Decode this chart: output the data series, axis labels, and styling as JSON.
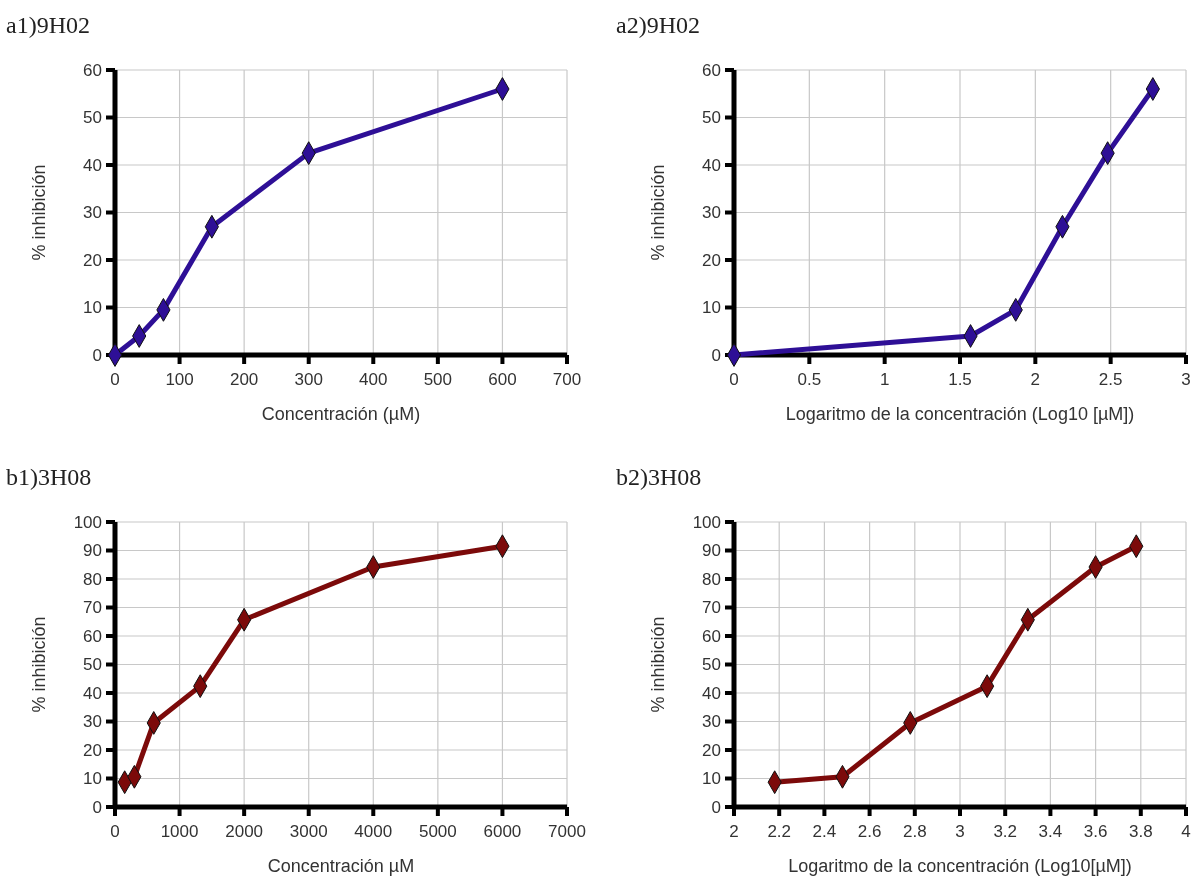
{
  "chart_data": [
    {
      "type": "line",
      "title": "a1)9H02",
      "xlabel": "Concentración (µM)",
      "ylabel": "% inhibición",
      "xlim": [
        0,
        700
      ],
      "xticks": [
        0,
        100,
        200,
        300,
        400,
        500,
        600,
        700
      ],
      "ylim": [
        0,
        60
      ],
      "yticks": [
        0,
        10,
        20,
        30,
        40,
        50,
        60
      ],
      "grid": true,
      "marker": "diamond",
      "series": [
        {
          "color": "#2e0f96",
          "x": [
            0,
            37.5,
            75,
            150,
            300,
            600
          ],
          "values": [
            0,
            4,
            9.5,
            27,
            42.5,
            56
          ]
        }
      ]
    },
    {
      "type": "line",
      "title": "a2)9H02",
      "xlabel": "Logaritmo de la concentración (Log10 [µM])",
      "ylabel": "% inhibición",
      "xlim": [
        0,
        3
      ],
      "xticks": [
        0,
        0.5,
        1,
        1.5,
        2,
        2.5,
        3
      ],
      "ylim": [
        0,
        60
      ],
      "yticks": [
        0,
        10,
        20,
        30,
        40,
        50,
        60
      ],
      "grid": true,
      "marker": "diamond",
      "series": [
        {
          "color": "#2e0f96",
          "x": [
            0,
            1.57,
            1.87,
            2.18,
            2.48,
            2.78
          ],
          "values": [
            0,
            4,
            9.5,
            27,
            42.5,
            56
          ]
        }
      ]
    },
    {
      "type": "line",
      "title": "b1)3H08",
      "xlabel": "Concentración µM",
      "ylabel": "% inhibición",
      "xlim": [
        0,
        7000
      ],
      "xticks": [
        0,
        1000,
        2000,
        3000,
        4000,
        5000,
        6000,
        7000
      ],
      "ylim": [
        0,
        100
      ],
      "yticks": [
        0,
        10,
        20,
        30,
        40,
        50,
        60,
        70,
        80,
        90,
        100
      ],
      "grid": true,
      "marker": "diamond",
      "series": [
        {
          "color": "#7c0a0a",
          "x": [
            150,
            300,
            600,
            1320,
            2000,
            4000,
            6000
          ],
          "values": [
            8.7,
            10.6,
            29.5,
            42.4,
            65.7,
            84.2,
            91.5
          ]
        }
      ]
    },
    {
      "type": "line",
      "title": "b2)3H08",
      "xlabel": "Logaritmo de la concentración (Log10[µM])",
      "ylabel": "% inhibición",
      "xlim": [
        2,
        4
      ],
      "xticks": [
        2,
        2.2,
        2.4,
        2.6,
        2.8,
        3,
        3.2,
        3.4,
        3.6,
        3.8,
        4
      ],
      "ylim": [
        0,
        100
      ],
      "yticks": [
        0,
        10,
        20,
        30,
        40,
        50,
        60,
        70,
        80,
        90,
        100
      ],
      "grid": true,
      "marker": "diamond",
      "series": [
        {
          "color": "#7c0a0a",
          "x": [
            2.18,
            2.48,
            2.78,
            3.12,
            3.3,
            3.6,
            3.78
          ],
          "values": [
            8.7,
            10.6,
            29.5,
            42.4,
            65.7,
            84.2,
            91.5
          ]
        }
      ]
    }
  ]
}
